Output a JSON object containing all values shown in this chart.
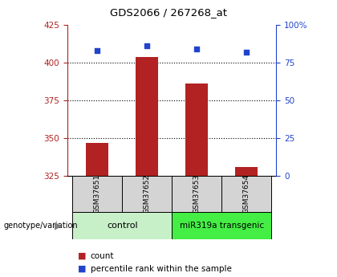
{
  "title": "GDS2066 / 267268_at",
  "samples": [
    "GSM37651",
    "GSM37652",
    "GSM37653",
    "GSM37654"
  ],
  "bar_values": [
    347,
    404,
    386,
    331
  ],
  "blue_values": [
    408,
    411,
    409,
    407
  ],
  "ylim_left": [
    325,
    425
  ],
  "ylim_right": [
    0,
    100
  ],
  "yticks_left": [
    325,
    350,
    375,
    400,
    425
  ],
  "yticks_right": [
    0,
    25,
    50,
    75,
    100
  ],
  "ytick_right_labels": [
    "0",
    "25",
    "50",
    "75",
    "100%"
  ],
  "grid_lines": [
    350,
    375,
    400
  ],
  "bar_color": "#b22222",
  "blue_color": "#2244cc",
  "ctrl_color": "#c8f0c8",
  "mir_color": "#44ee44",
  "sample_box_color": "#d4d4d4",
  "genotype_label": "genotype/variation",
  "legend_count_label": "count",
  "legend_pct_label": "percentile rank within the sample",
  "bar_width": 0.45,
  "x_positions": [
    0,
    1,
    2,
    3
  ]
}
